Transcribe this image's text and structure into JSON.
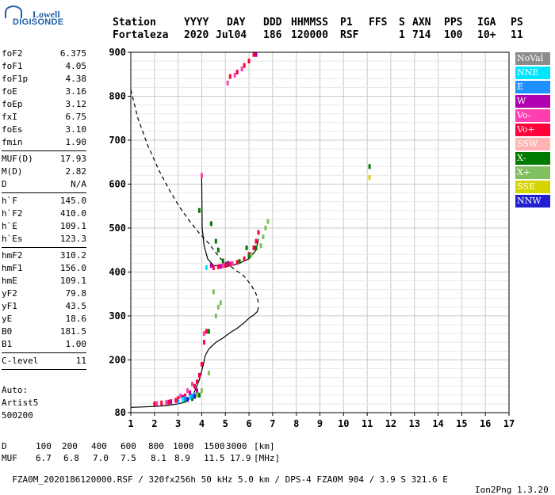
{
  "logo": {
    "top": "Lowell",
    "bottom": "DIGISONDE"
  },
  "header": {
    "line1": [
      "Station",
      "YYYY",
      "DAY",
      "DDD",
      "HHMMSS",
      "P1",
      "FFS",
      "S",
      "AXN",
      "PPS",
      "IGA",
      "PS"
    ],
    "line2": [
      "Fortaleza",
      "2020",
      "Jul04",
      "186",
      "120000",
      "RSF",
      "1",
      "714",
      "100",
      "10+",
      "11"
    ]
  },
  "params": {
    "group1": [
      {
        "k": "foF2",
        "v": "6.375"
      },
      {
        "k": "foF1",
        "v": "4.05"
      },
      {
        "k": "foF1p",
        "v": "4.38"
      },
      {
        "k": "foE",
        "v": "3.16"
      },
      {
        "k": "foEp",
        "v": "3.12"
      },
      {
        "k": "fxI",
        "v": "6.75"
      },
      {
        "k": "foEs",
        "v": "3.10"
      },
      {
        "k": "fmin",
        "v": "1.90"
      }
    ],
    "group2": [
      {
        "k": "MUF(D)",
        "v": "17.93"
      },
      {
        "k": "M(D)",
        "v": "2.82"
      },
      {
        "k": "D",
        "v": "N/A"
      }
    ],
    "group3": [
      {
        "k": "h`F",
        "v": "145.0"
      },
      {
        "k": "h`F2",
        "v": "410.0"
      },
      {
        "k": "h`E",
        "v": "109.1"
      },
      {
        "k": "h`Es",
        "v": "123.3"
      }
    ],
    "group4": [
      {
        "k": "hmF2",
        "v": "310.2"
      },
      {
        "k": "hmF1",
        "v": "156.0"
      },
      {
        "k": "hmE",
        "v": "109.1"
      },
      {
        "k": "yF2",
        "v": "79.8"
      },
      {
        "k": "yF1",
        "v": "43.5"
      },
      {
        "k": "yE",
        "v": "18.6"
      },
      {
        "k": "B0",
        "v": "181.5"
      },
      {
        "k": "B1",
        "v": "1.00"
      }
    ],
    "group5": [
      {
        "k": "C-level",
        "v": "11"
      }
    ]
  },
  "auto": {
    "line1": "Auto:",
    "line2": "Artist5",
    "line3": "500200"
  },
  "legend": [
    {
      "label": "NoVal",
      "color": "#8c8c8c"
    },
    {
      "label": "NNE",
      "color": "#00e5ff"
    },
    {
      "label": "E",
      "color": "#1e90ff"
    },
    {
      "label": "W",
      "color": "#b000b0"
    },
    {
      "label": "Vo-",
      "color": "#ff3fb0"
    },
    {
      "label": "Vo+",
      "color": "#ff0038"
    },
    {
      "label": "SSW",
      "color": "#ffb3b3"
    },
    {
      "label": "X-",
      "color": "#007a00"
    },
    {
      "label": "X+",
      "color": "#80c060"
    },
    {
      "label": "SSE",
      "color": "#d4d400"
    },
    {
      "label": "NNW",
      "color": "#2020d0"
    }
  ],
  "footer": {
    "d_label": "D",
    "d_values": [
      "100",
      "200",
      "400",
      "600",
      "800",
      "1000",
      "1500",
      "3000"
    ],
    "d_unit": "[km]",
    "muf_label": "MUF",
    "muf_values": [
      "6.7",
      "6.8",
      "7.0",
      "7.5",
      "8.1",
      "8.9",
      "11.5",
      "17.9"
    ],
    "muf_unit": "[MHz]",
    "file_line": "FZA0M_2020186120000.RSF / 320fx256h 50 kHz 5.0 km / DPS-4 FZA0M 904 / 3.9 S 321.6 E",
    "version": "Ion2Png 1.3.20"
  },
  "chart_data": {
    "type": "scatter",
    "xlim": [
      1,
      17
    ],
    "ylim": [
      80,
      900
    ],
    "x_ticks": [
      1,
      2,
      3,
      4,
      5,
      6,
      7,
      8,
      9,
      10,
      11,
      12,
      13,
      14,
      15,
      16,
      17
    ],
    "y_ticks": [
      80,
      200,
      300,
      400,
      500,
      600,
      700,
      800,
      900
    ],
    "grid": true,
    "series": [
      {
        "name": "Vo+",
        "color": "#ff0038",
        "points": [
          [
            2.0,
            100
          ],
          [
            2.3,
            102
          ],
          [
            2.6,
            104
          ],
          [
            2.9,
            108
          ],
          [
            3.0,
            112
          ],
          [
            3.3,
            118
          ],
          [
            3.5,
            125
          ],
          [
            3.7,
            140
          ],
          [
            3.8,
            150
          ],
          [
            3.9,
            165
          ],
          [
            4.0,
            190
          ],
          [
            4.1,
            240
          ],
          [
            4.2,
            265
          ],
          [
            4.5,
            410
          ],
          [
            4.7,
            412
          ],
          [
            5.0,
            415
          ],
          [
            5.2,
            418
          ],
          [
            5.5,
            422
          ],
          [
            5.8,
            430
          ],
          [
            6.0,
            440
          ],
          [
            6.2,
            455
          ],
          [
            6.3,
            470
          ],
          [
            6.4,
            490
          ],
          [
            5.2,
            845
          ],
          [
            5.5,
            855
          ],
          [
            5.8,
            870
          ],
          [
            6.0,
            880
          ],
          [
            6.2,
            895
          ]
        ]
      },
      {
        "name": "Vo-",
        "color": "#ff3fb0",
        "points": [
          [
            2.1,
            101
          ],
          [
            2.5,
            103
          ],
          [
            3.1,
            118
          ],
          [
            3.4,
            130
          ],
          [
            3.6,
            145
          ],
          [
            4.0,
            620
          ],
          [
            4.1,
            260
          ],
          [
            4.9,
            414
          ],
          [
            5.3,
            419
          ],
          [
            5.1,
            830
          ],
          [
            5.4,
            848
          ],
          [
            5.7,
            862
          ]
        ]
      },
      {
        "name": "W",
        "color": "#b000b0",
        "points": [
          [
            2.7,
            105
          ],
          [
            3.2,
            115
          ],
          [
            3.5,
            122
          ],
          [
            3.8,
            130
          ],
          [
            4.4,
            415
          ],
          [
            4.8,
            413
          ],
          [
            5.1,
            420
          ],
          [
            6.3,
            895
          ]
        ]
      },
      {
        "name": "X-",
        "color": "#007a00",
        "points": [
          [
            3.3,
            108
          ],
          [
            3.6,
            112
          ],
          [
            3.9,
            120
          ],
          [
            4.6,
            470
          ],
          [
            4.7,
            450
          ],
          [
            4.9,
            425
          ],
          [
            5.6,
            424
          ],
          [
            6.0,
            435
          ],
          [
            6.3,
            455
          ],
          [
            4.4,
            510
          ],
          [
            3.9,
            540
          ],
          [
            5.9,
            455
          ],
          [
            4.3,
            265
          ],
          [
            11.1,
            640
          ]
        ]
      },
      {
        "name": "X+",
        "color": "#80c060",
        "points": [
          [
            3.8,
            120
          ],
          [
            4.0,
            130
          ],
          [
            4.3,
            170
          ],
          [
            4.6,
            300
          ],
          [
            4.8,
            330
          ],
          [
            6.1,
            440
          ],
          [
            6.5,
            460
          ],
          [
            6.6,
            480
          ],
          [
            6.7,
            500
          ],
          [
            6.8,
            515
          ],
          [
            4.5,
            355
          ],
          [
            4.7,
            320
          ]
        ]
      },
      {
        "name": "NNE",
        "color": "#00e5ff",
        "points": [
          [
            3.2,
            110
          ],
          [
            3.5,
            115
          ],
          [
            3.7,
            120
          ],
          [
            4.2,
            410
          ]
        ]
      },
      {
        "name": "E",
        "color": "#1e90ff",
        "points": [
          [
            3.0,
            105
          ],
          [
            3.3,
            112
          ],
          [
            3.6,
            118
          ]
        ]
      },
      {
        "name": "SSE",
        "color": "#d4d400",
        "points": [
          [
            11.1,
            615
          ]
        ]
      },
      {
        "name": "NNW",
        "color": "#2020d0",
        "points": [
          [
            3.4,
            110
          ],
          [
            3.7,
            117
          ]
        ]
      }
    ],
    "profile_solid": [
      [
        1.0,
        92
      ],
      [
        1.5,
        93
      ],
      [
        2.0,
        94
      ],
      [
        2.5,
        96
      ],
      [
        3.0,
        100
      ],
      [
        3.3,
        104
      ],
      [
        3.6,
        115
      ],
      [
        3.9,
        155
      ],
      [
        4.05,
        185
      ],
      [
        4.15,
        210
      ],
      [
        4.3,
        225
      ],
      [
        4.6,
        240
      ],
      [
        4.9,
        250
      ],
      [
        5.2,
        262
      ],
      [
        5.5,
        272
      ],
      [
        5.8,
        285
      ],
      [
        6.0,
        295
      ],
      [
        6.2,
        302
      ],
      [
        6.35,
        310
      ],
      [
        6.4,
        320
      ]
    ],
    "trace_solid": [
      [
        4.0,
        615
      ],
      [
        4.02,
        500
      ],
      [
        4.1,
        460
      ],
      [
        4.25,
        430
      ],
      [
        4.5,
        415
      ],
      [
        5.0,
        412
      ],
      [
        5.5,
        418
      ],
      [
        6.0,
        430
      ],
      [
        6.3,
        450
      ],
      [
        6.4,
        475
      ]
    ],
    "profile_dashed": [
      [
        1.0,
        815
      ],
      [
        1.3,
        750
      ],
      [
        1.7,
        690
      ],
      [
        2.2,
        630
      ],
      [
        2.7,
        580
      ],
      [
        3.1,
        545
      ],
      [
        3.5,
        515
      ],
      [
        3.9,
        488
      ],
      [
        4.3,
        465
      ],
      [
        4.8,
        430
      ],
      [
        5.3,
        410
      ],
      [
        5.8,
        390
      ],
      [
        6.1,
        370
      ],
      [
        6.3,
        350
      ],
      [
        6.4,
        330
      ]
    ]
  }
}
